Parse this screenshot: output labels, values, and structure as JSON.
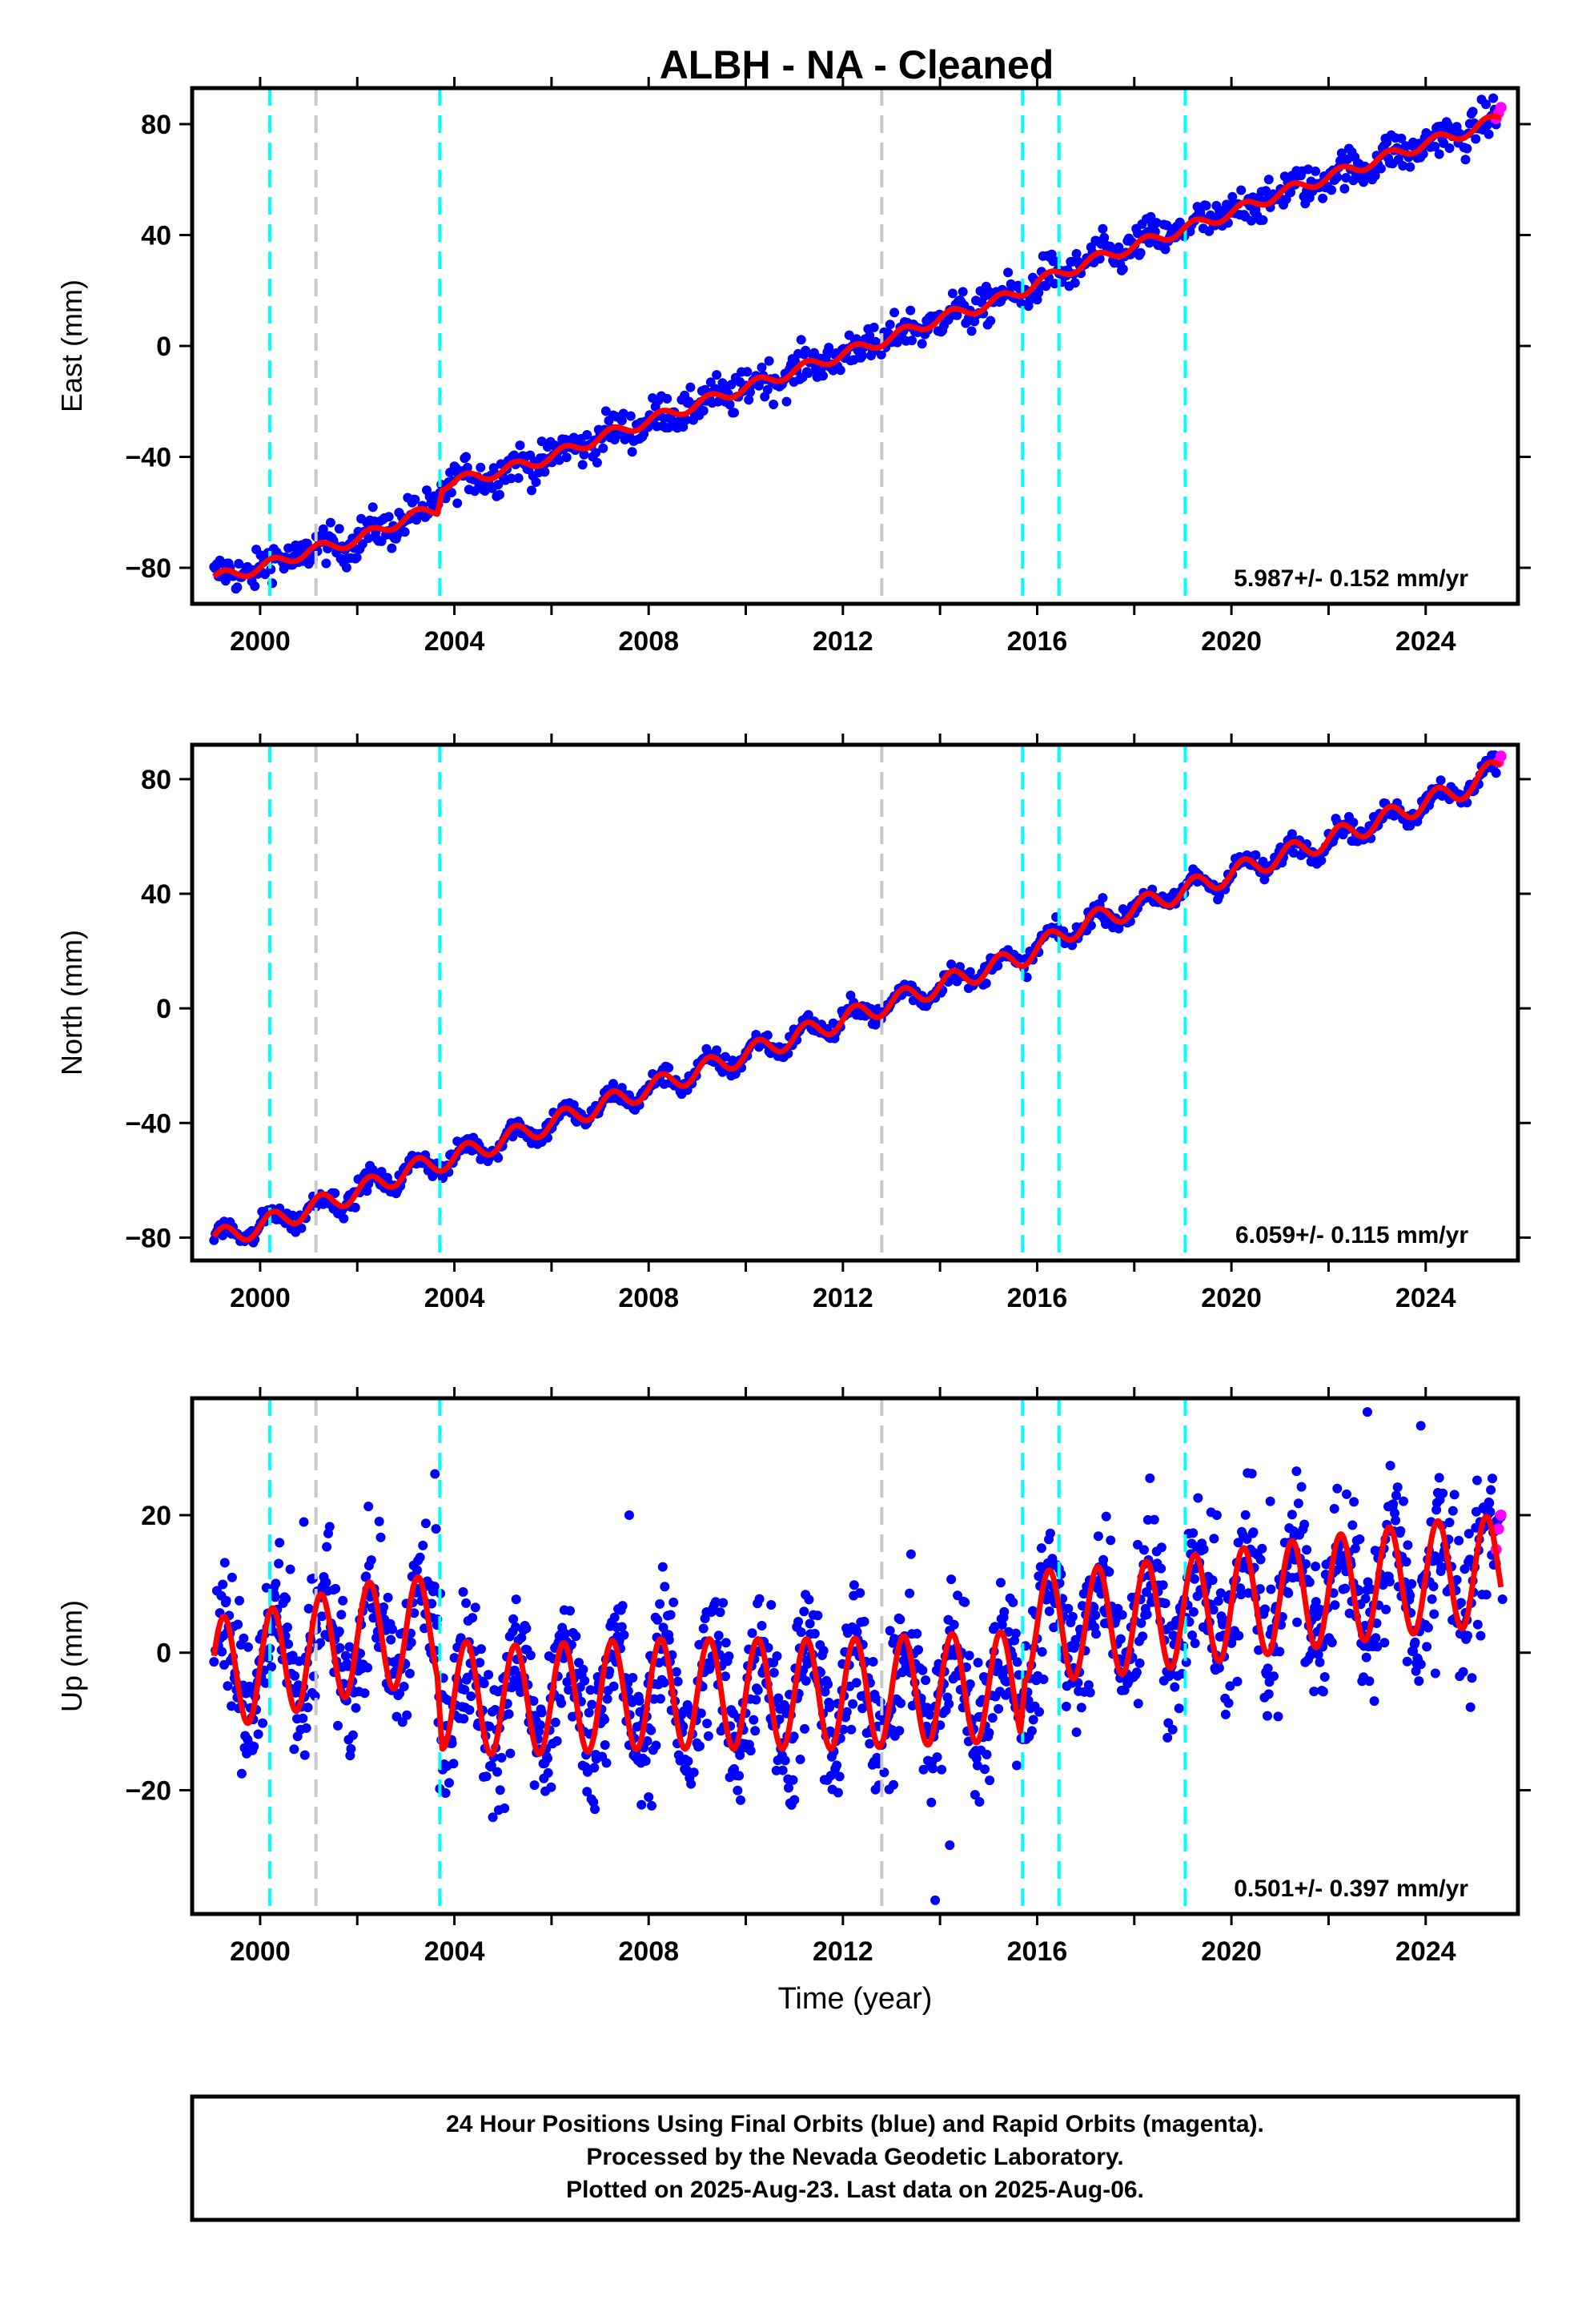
{
  "chart_data": {
    "type": "scatter",
    "title": "ALBH  - NA - Cleaned",
    "xlabel": "Time (year)",
    "xlim": [
      1998.6,
      2025.9
    ],
    "xticks_labeled": [
      2000,
      2004,
      2008,
      2012,
      2016,
      2020,
      2024
    ],
    "xticks_minor_step": 2,
    "grid": false,
    "series_styles": {
      "final_orbits": {
        "color": "#0000ff",
        "marker": "dot"
      },
      "rapid_orbits": {
        "color": "#ff00ff",
        "marker": "dot"
      },
      "model": {
        "color": "#ff0000",
        "line": "solid"
      }
    },
    "vlines": {
      "cyan": {
        "color": "#00ffff",
        "x": [
          2000.2,
          2003.7,
          2015.7,
          2016.45,
          2019.05
        ]
      },
      "gray": {
        "color": "#c8c8c8",
        "x": [
          2001.15,
          2012.8
        ]
      }
    },
    "panels": [
      {
        "ylabel": "East (mm)",
        "ylim": [
          -93,
          93
        ],
        "yticks": [
          -80,
          -40,
          0,
          40,
          80
        ],
        "ytick_labels": [
          "−80",
          "−40",
          "0",
          "40",
          "80"
        ],
        "rate_text": "5.987+/- 0.152 mm/yr",
        "model_points": [
          [
            1999.0,
            -84
          ],
          [
            2000.0,
            -80
          ],
          [
            2001.0,
            -74
          ],
          [
            2002.0,
            -70
          ],
          [
            2003.0,
            -62
          ],
          [
            2003.65,
            -59
          ],
          [
            2003.75,
            -50
          ],
          [
            2004.0,
            -49
          ],
          [
            2005.0,
            -45
          ],
          [
            2006.0,
            -40
          ],
          [
            2007.0,
            -33
          ],
          [
            2008.0,
            -27
          ],
          [
            2009.0,
            -21
          ],
          [
            2010.0,
            -15
          ],
          [
            2011.0,
            -9
          ],
          [
            2012.0,
            -3
          ],
          [
            2013.0,
            3
          ],
          [
            2014.0,
            10
          ],
          [
            2015.0,
            15
          ],
          [
            2015.7,
            20
          ],
          [
            2016.0,
            23
          ],
          [
            2016.45,
            26
          ],
          [
            2017.0,
            30
          ],
          [
            2018.0,
            36
          ],
          [
            2019.0,
            42
          ],
          [
            2020.0,
            48
          ],
          [
            2021.0,
            55
          ],
          [
            2022.0,
            61
          ],
          [
            2023.0,
            67
          ],
          [
            2024.0,
            73
          ],
          [
            2025.0,
            78
          ],
          [
            2025.55,
            83
          ]
        ],
        "seasonal_amplitude": 2,
        "scatter": 3.5,
        "rapid_points": [
          [
            2025.45,
            82
          ],
          [
            2025.5,
            84
          ],
          [
            2025.55,
            86
          ]
        ]
      },
      {
        "ylabel": "North (mm)",
        "ylim": [
          -88,
          92
        ],
        "yticks": [
          -80,
          -40,
          0,
          40,
          80
        ],
        "ytick_labels": [
          "−80",
          "−40",
          "0",
          "40",
          "80"
        ],
        "rate_text": "6.059+/- 0.115 mm/yr",
        "model_points": [
          [
            1999.0,
            -81
          ],
          [
            2000.0,
            -76
          ],
          [
            2001.0,
            -70
          ],
          [
            2002.0,
            -64
          ],
          [
            2003.0,
            -57
          ],
          [
            2004.0,
            -52
          ],
          [
            2005.0,
            -46
          ],
          [
            2006.0,
            -40
          ],
          [
            2007.0,
            -34
          ],
          [
            2008.0,
            -28
          ],
          [
            2009.0,
            -22
          ],
          [
            2010.0,
            -16
          ],
          [
            2011.0,
            -10
          ],
          [
            2012.0,
            -4
          ],
          [
            2013.0,
            2
          ],
          [
            2014.0,
            8
          ],
          [
            2015.0,
            14
          ],
          [
            2015.7,
            18
          ],
          [
            2016.0,
            21
          ],
          [
            2016.45,
            25
          ],
          [
            2017.0,
            30
          ],
          [
            2018.0,
            35
          ],
          [
            2019.0,
            41
          ],
          [
            2020.0,
            47
          ],
          [
            2021.0,
            53
          ],
          [
            2022.0,
            59
          ],
          [
            2023.0,
            65
          ],
          [
            2024.0,
            72
          ],
          [
            2025.0,
            78
          ],
          [
            2025.55,
            86
          ]
        ],
        "seasonal_amplitude": 3.5,
        "scatter": 1.8,
        "rapid_points": [
          [
            2025.5,
            86
          ],
          [
            2025.55,
            88
          ]
        ]
      },
      {
        "ylabel": "Up (mm)",
        "ylim": [
          -38,
          37
        ],
        "yticks": [
          -20,
          0,
          20
        ],
        "ytick_labels": [
          "−20",
          "0",
          "20"
        ],
        "rate_text": "0.501+/- 0.397 mm/yr",
        "model_points": [
          [
            1999.0,
            -3
          ],
          [
            2000.0,
            -2
          ],
          [
            2001.0,
            0
          ],
          [
            2002.0,
            2
          ],
          [
            2003.0,
            3
          ],
          [
            2003.65,
            3
          ],
          [
            2003.75,
            -6
          ],
          [
            2005.0,
            -7
          ],
          [
            2008.0,
            -6
          ],
          [
            2012.0,
            -6
          ],
          [
            2015.0,
            -5
          ],
          [
            2015.65,
            -5
          ],
          [
            2015.75,
            4
          ],
          [
            2016.45,
            4
          ],
          [
            2018.0,
            5
          ],
          [
            2020.0,
            7
          ],
          [
            2022.0,
            9
          ],
          [
            2024.0,
            11
          ],
          [
            2025.55,
            12
          ]
        ],
        "seasonal_amplitude": 8,
        "scatter": 4,
        "outliers": [
          [
            2000.4,
            16
          ],
          [
            2000.9,
            19
          ],
          [
            2003.6,
            26
          ],
          [
            2007.6,
            20
          ],
          [
            2008.0,
            -21
          ],
          [
            2013.9,
            -36
          ],
          [
            2014.2,
            -28
          ],
          [
            2019.7,
            20
          ],
          [
            2020.8,
            22
          ],
          [
            2022.8,
            35
          ],
          [
            2023.9,
            33
          ],
          [
            2024.2,
            -3
          ]
        ],
        "rapid_points": [
          [
            2025.45,
            15
          ],
          [
            2025.5,
            18
          ],
          [
            2025.55,
            20
          ]
        ]
      }
    ]
  },
  "footer": {
    "line1": "24 Hour Positions Using Final Orbits (blue) and Rapid Orbits (magenta).",
    "line2": "Processed by the Nevada Geodetic Laboratory.",
    "line3": "Plotted on 2025-Aug-23. Last data on 2025-Aug-06."
  }
}
